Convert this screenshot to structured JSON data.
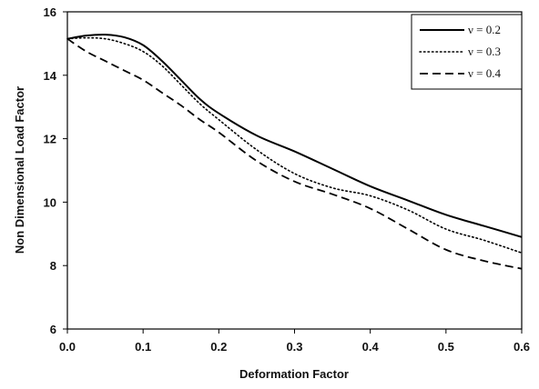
{
  "chart_data": {
    "type": "line",
    "xlabel": "Deformation Factor",
    "ylabel": "Non Dimensional Load Factor",
    "xlim": [
      0.0,
      0.6
    ],
    "ylim": [
      6,
      16
    ],
    "xticks": [
      "0.0",
      "0.1",
      "0.2",
      "0.3",
      "0.4",
      "0.5",
      "0.6"
    ],
    "yticks": [
      "6",
      "8",
      "10",
      "12",
      "14",
      "16"
    ],
    "grid": false,
    "legend_position": "top-right",
    "series": [
      {
        "name": "ν = 0.2",
        "style": "solid",
        "x": [
          0.0,
          0.025,
          0.05,
          0.075,
          0.1,
          0.125,
          0.15,
          0.175,
          0.2,
          0.25,
          0.3,
          0.35,
          0.4,
          0.45,
          0.5,
          0.55,
          0.6
        ],
        "y": [
          15.15,
          15.25,
          15.28,
          15.2,
          14.95,
          14.45,
          13.85,
          13.25,
          12.8,
          12.1,
          11.6,
          11.05,
          10.5,
          10.05,
          9.6,
          9.25,
          8.9
        ]
      },
      {
        "name": "ν = 0.3",
        "style": "dotted",
        "x": [
          0.0,
          0.025,
          0.05,
          0.075,
          0.1,
          0.125,
          0.15,
          0.175,
          0.2,
          0.25,
          0.3,
          0.35,
          0.4,
          0.45,
          0.5,
          0.55,
          0.6
        ],
        "y": [
          15.15,
          15.18,
          15.15,
          15.0,
          14.75,
          14.3,
          13.7,
          13.1,
          12.6,
          11.65,
          10.9,
          10.45,
          10.2,
          9.75,
          9.15,
          8.8,
          8.4
        ]
      },
      {
        "name": "ν = 0.4",
        "style": "dashed",
        "x": [
          0.0,
          0.025,
          0.05,
          0.075,
          0.1,
          0.125,
          0.15,
          0.175,
          0.2,
          0.25,
          0.3,
          0.35,
          0.4,
          0.45,
          0.5,
          0.55,
          0.6
        ],
        "y": [
          15.15,
          14.75,
          14.45,
          14.15,
          13.85,
          13.45,
          13.05,
          12.6,
          12.2,
          11.3,
          10.65,
          10.25,
          9.8,
          9.15,
          8.5,
          8.15,
          7.9
        ]
      }
    ]
  }
}
